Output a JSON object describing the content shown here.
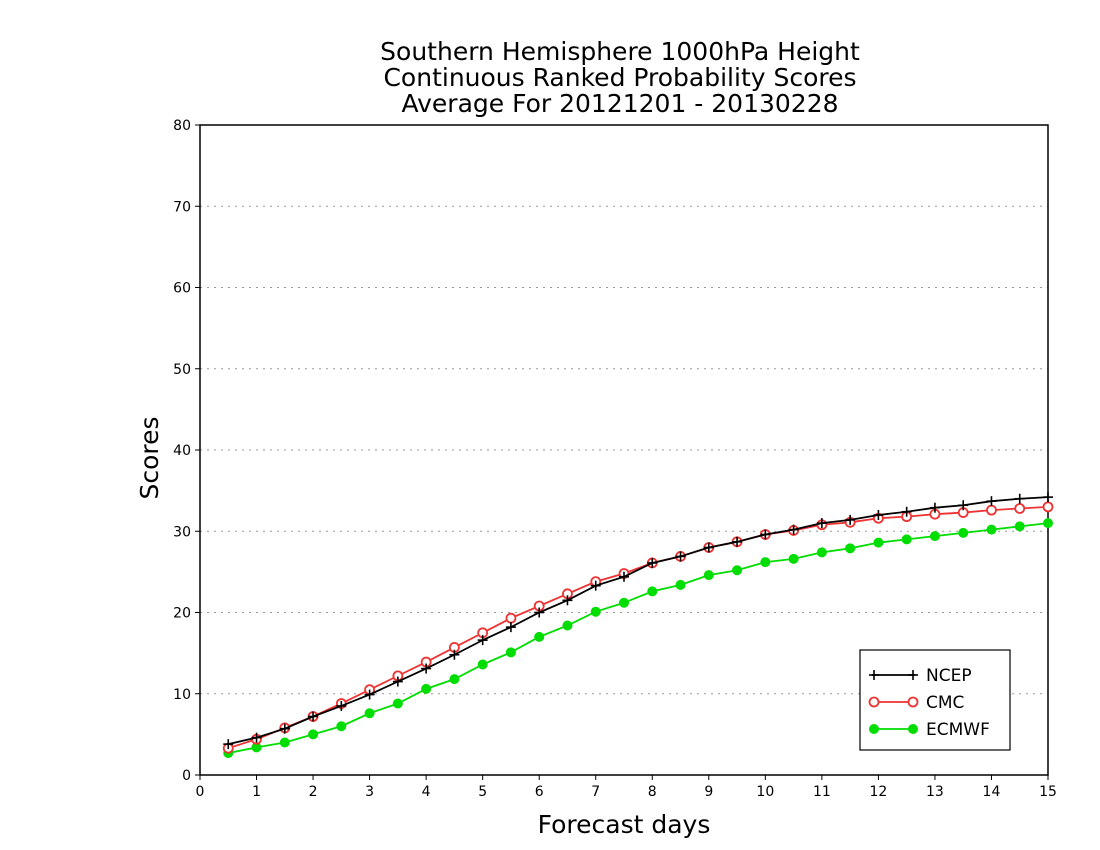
{
  "chart_data": {
    "type": "line",
    "title_lines": [
      "Southern Hemisphere 1000hPa Height",
      "Continuous Ranked Probability Scores",
      "Average For 20121201 - 20130228"
    ],
    "xlabel": "Forecast days",
    "ylabel": "Scores",
    "xlim": [
      0,
      15
    ],
    "ylim": [
      0,
      80
    ],
    "x_ticks": [
      0,
      1,
      2,
      3,
      4,
      5,
      6,
      7,
      8,
      9,
      10,
      11,
      12,
      13,
      14,
      15
    ],
    "y_ticks": [
      0,
      10,
      20,
      30,
      40,
      50,
      60,
      70,
      80
    ],
    "grid": "horizontal dotted",
    "legend_position": "bottom-right",
    "x": [
      0.5,
      1,
      1.5,
      2,
      2.5,
      3,
      3.5,
      4,
      4.5,
      5,
      5.5,
      6,
      6.5,
      7,
      7.5,
      8,
      8.5,
      9,
      9.5,
      10,
      10.5,
      11,
      11.5,
      12,
      12.5,
      13,
      13.5,
      14,
      14.5,
      15
    ],
    "series": [
      {
        "name": "NCEP",
        "color": "#000000",
        "marker": "plus",
        "values": [
          3.8,
          4.6,
          5.7,
          7.2,
          8.5,
          9.9,
          11.5,
          13.1,
          14.8,
          16.6,
          18.2,
          20.0,
          21.5,
          23.3,
          24.4,
          26.1,
          26.9,
          28.0,
          28.7,
          29.6,
          30.2,
          31.0,
          31.4,
          32.0,
          32.4,
          32.9,
          33.2,
          33.7,
          34.0,
          34.2
        ]
      },
      {
        "name": "CMC",
        "color": "#ee3333",
        "marker": "open-circle",
        "values": [
          3.3,
          4.4,
          5.8,
          7.2,
          8.8,
          10.5,
          12.2,
          13.9,
          15.7,
          17.5,
          19.3,
          20.8,
          22.3,
          23.8,
          24.8,
          26.1,
          26.9,
          28.0,
          28.7,
          29.6,
          30.1,
          30.8,
          31.1,
          31.6,
          31.8,
          32.1,
          32.3,
          32.6,
          32.8,
          33.0
        ]
      },
      {
        "name": "ECMWF",
        "color": "#00dd00",
        "marker": "filled-circle",
        "values": [
          2.7,
          3.4,
          4.0,
          5.0,
          6.0,
          7.6,
          8.8,
          10.6,
          11.8,
          13.6,
          15.1,
          17.0,
          18.4,
          20.1,
          21.2,
          22.6,
          23.4,
          24.6,
          25.2,
          26.2,
          26.6,
          27.4,
          27.9,
          28.6,
          29.0,
          29.4,
          29.8,
          30.2,
          30.6,
          31.0
        ]
      }
    ]
  }
}
